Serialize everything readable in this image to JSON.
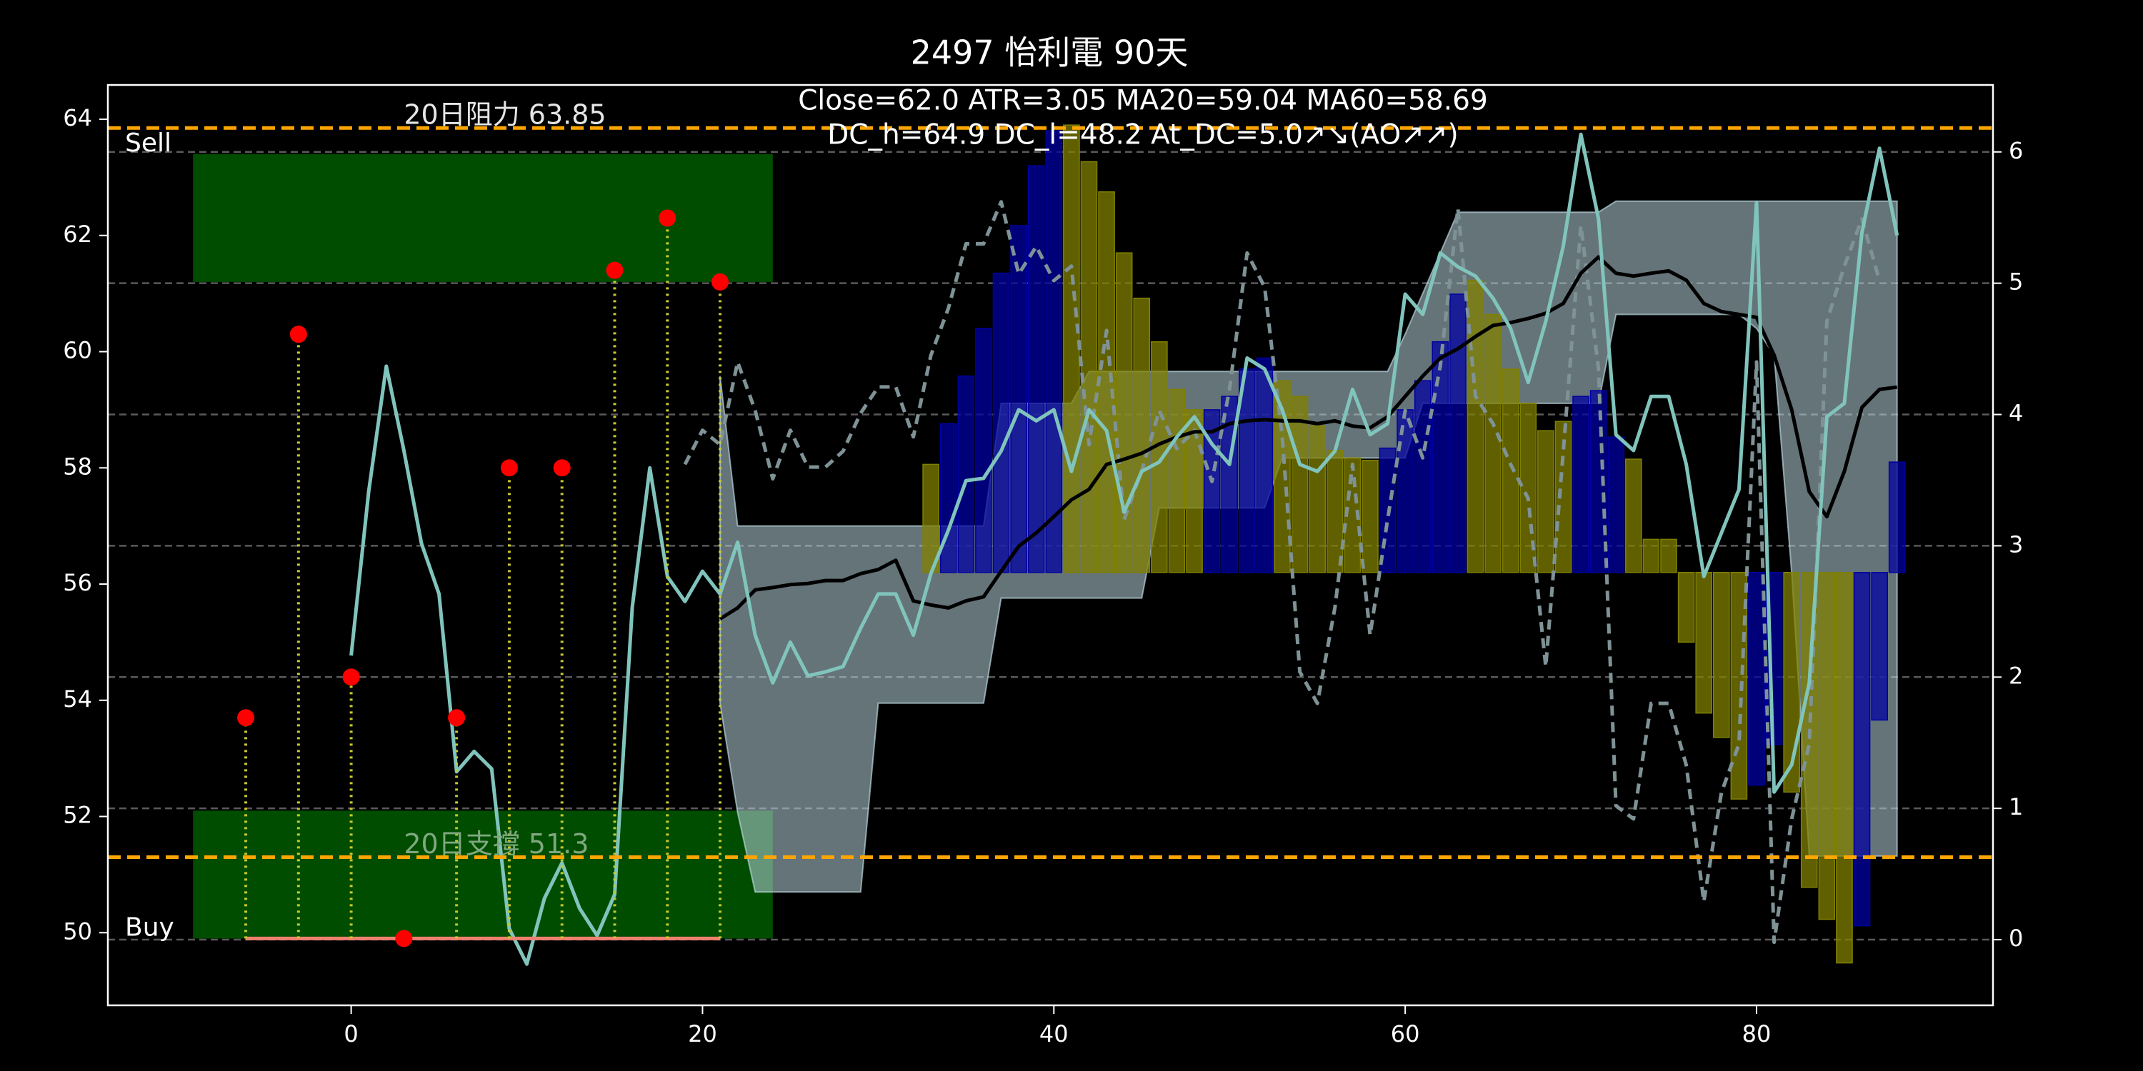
{
  "chart_data": {
    "type": "combo",
    "title": "2497 怡利電 90天",
    "annotations": [
      "Close=62.0 ATR=3.05 MA20=59.04 MA60=58.69",
      "DC_h=64.9 DC_l=48.2 At_DC=5.0↗↘(AO↗↗)"
    ],
    "xlim": [
      -13.85,
      93.46
    ],
    "xticks": [
      0,
      20,
      40,
      60,
      80
    ],
    "ylim": [
      48.75,
      64.59
    ],
    "yticks": [
      50,
      52,
      54,
      56,
      58,
      60,
      62,
      64
    ],
    "y2lim": [
      -0.5,
      6.51
    ],
    "y2ticks": [
      0,
      1,
      2,
      3,
      4,
      5,
      6
    ],
    "grid": "y2",
    "series": [
      {
        "type": "zone",
        "name": "Sell",
        "xrange": [
          -9,
          24
        ],
        "yrange": [
          61.2,
          63.4
        ],
        "color": "#004d00",
        "label_pos": "above"
      },
      {
        "type": "zone",
        "name": "Buy",
        "xrange": [
          -9,
          24
        ],
        "yrange": [
          49.9,
          52.1
        ],
        "color": "#004d00",
        "label_pos": "inside"
      },
      {
        "type": "band",
        "color": "#b8d4dc",
        "x": [
          21,
          22,
          23,
          24,
          25,
          26,
          27,
          28,
          29,
          30,
          31,
          32,
          33,
          34,
          35,
          36,
          37,
          38,
          39,
          40,
          41,
          42,
          43,
          44,
          45,
          46,
          47,
          48,
          49,
          50,
          51,
          52,
          53,
          54,
          55,
          56,
          57,
          58,
          59,
          60,
          61,
          62,
          63,
          64,
          65,
          66,
          67,
          68,
          69,
          70,
          71,
          72,
          73,
          74,
          75,
          76,
          77,
          78,
          79,
          80,
          81,
          82,
          83,
          84,
          85,
          86,
          87,
          88
        ],
        "upper": [
          59.58,
          57.0,
          57.0,
          57.0,
          57.0,
          57.0,
          57.0,
          57.0,
          57.0,
          57.0,
          57.0,
          57.0,
          57.0,
          57.0,
          57.0,
          57.0,
          59.11,
          59.11,
          59.11,
          59.11,
          59.11,
          59.66,
          59.66,
          59.66,
          59.66,
          59.66,
          59.66,
          59.66,
          59.66,
          59.66,
          59.66,
          59.66,
          59.66,
          59.66,
          59.66,
          59.66,
          59.66,
          59.66,
          59.66,
          60.3,
          61.0,
          61.7,
          62.4,
          62.4,
          62.4,
          62.4,
          62.4,
          62.4,
          62.4,
          62.4,
          62.4,
          62.59,
          62.59,
          62.59,
          62.59,
          62.59,
          62.59,
          62.59,
          62.59,
          62.59,
          62.59,
          62.59,
          62.59,
          62.59,
          62.59,
          62.59,
          62.59,
          62.59
        ],
        "lower": [
          53.95,
          52.07,
          50.7,
          50.7,
          50.7,
          50.7,
          50.7,
          50.7,
          50.7,
          53.95,
          53.95,
          53.95,
          53.95,
          53.95,
          53.95,
          53.95,
          55.76,
          55.76,
          55.76,
          55.76,
          55.76,
          55.76,
          55.76,
          55.76,
          55.76,
          57.31,
          57.31,
          57.31,
          57.31,
          57.31,
          57.31,
          57.31,
          58.17,
          58.17,
          58.17,
          58.17,
          58.17,
          58.17,
          58.17,
          58.17,
          59.11,
          59.11,
          59.11,
          59.11,
          59.11,
          59.11,
          59.11,
          59.11,
          59.11,
          59.11,
          59.11,
          60.64,
          60.64,
          60.64,
          60.64,
          60.64,
          60.64,
          60.64,
          60.64,
          60.4,
          59.94,
          56.2,
          51.32,
          51.32,
          51.32,
          51.32,
          51.32,
          51.32
        ]
      },
      {
        "type": "bar",
        "base": 56.2,
        "x": [
          33,
          34,
          35,
          36,
          37,
          38,
          39,
          40,
          41,
          42,
          43,
          44,
          45,
          46,
          47,
          48,
          49,
          50,
          51,
          52,
          53,
          54,
          55,
          56,
          57,
          58,
          59,
          60,
          61,
          62,
          63,
          64,
          65,
          66,
          67,
          68,
          69,
          70,
          71,
          72,
          73,
          74,
          75,
          76,
          77,
          78,
          79,
          80,
          81,
          82,
          83,
          84,
          85,
          86,
          87,
          88
        ],
        "values": [
          58.06,
          58.76,
          59.58,
          60.4,
          61.35,
          62.17,
          63.2,
          63.8,
          63.9,
          63.27,
          62.75,
          61.7,
          60.92,
          60.17,
          59.35,
          59.0,
          59.0,
          59.23,
          59.7,
          59.89,
          59.5,
          59.23,
          58.72,
          58.3,
          58.17,
          58.13,
          58.34,
          59.0,
          59.5,
          60.17,
          60.99,
          61.23,
          60.64,
          59.7,
          59.11,
          58.64,
          58.8,
          59.23,
          59.33,
          58.53,
          58.15,
          56.77,
          56.77,
          55.0,
          53.78,
          53.36,
          52.3,
          52.54,
          53.24,
          52.42,
          50.78,
          50.23,
          49.48,
          50.12,
          53.66,
          58.1
        ],
        "colors": [
          "#808000",
          "#0000a0",
          "#0000a0",
          "#0000a0",
          "#0000a0",
          "#0000a0",
          "#0000a0",
          "#0000a0",
          "#808000",
          "#808000",
          "#808000",
          "#808000",
          "#808000",
          "#808000",
          "#808000",
          "#808000",
          "#0000a0",
          "#0000a0",
          "#0000a0",
          "#0000a0",
          "#808000",
          "#808000",
          "#808000",
          "#808000",
          "#808000",
          "#808000",
          "#0000a0",
          "#0000a0",
          "#0000a0",
          "#0000a0",
          "#0000a0",
          "#808000",
          "#808000",
          "#808000",
          "#808000",
          "#808000",
          "#808000",
          "#0000a0",
          "#0000a0",
          "#0000a0",
          "#808000",
          "#808000",
          "#808000",
          "#808000",
          "#808000",
          "#808000",
          "#808000",
          "#0000a0",
          "#0000a0",
          "#808000",
          "#808000",
          "#808000",
          "#808000",
          "#0000a0",
          "#0000a0",
          "#0000a0"
        ]
      },
      {
        "type": "line",
        "axis": "y2",
        "dash": true,
        "color": "#7f9296",
        "x": [
          19,
          20,
          21,
          22,
          23,
          24,
          25,
          26,
          27,
          28,
          29,
          30,
          31,
          32,
          33,
          34,
          35,
          36,
          37,
          38,
          39,
          40,
          41,
          42,
          43,
          44,
          45,
          46,
          47,
          48,
          49,
          50,
          51,
          52,
          53,
          54,
          55,
          56,
          57,
          58,
          59,
          60,
          61,
          62,
          63,
          64,
          65,
          66,
          67,
          68,
          69,
          70,
          71,
          72,
          73,
          74,
          75,
          76,
          77,
          78,
          79,
          80,
          81,
          82,
          83,
          84,
          85,
          86,
          87
        ],
        "values": [
          3.62,
          3.88,
          3.77,
          4.4,
          4.03,
          3.51,
          3.88,
          3.6,
          3.6,
          3.72,
          4.01,
          4.21,
          4.21,
          3.83,
          4.45,
          4.81,
          5.3,
          5.3,
          5.62,
          5.07,
          5.28,
          5.02,
          5.13,
          3.77,
          4.64,
          3.2,
          3.57,
          4.03,
          3.74,
          3.88,
          3.49,
          4.19,
          5.23,
          4.97,
          3.83,
          2.04,
          1.8,
          2.53,
          3.62,
          2.32,
          3.2,
          4.03,
          3.67,
          4.37,
          5.57,
          4.14,
          3.93,
          3.62,
          3.36,
          2.08,
          3.72,
          5.44,
          4.35,
          1.02,
          0.92,
          1.8,
          1.8,
          1.33,
          0.29,
          1.12,
          1.49,
          4.4,
          -0.02,
          0.92,
          1.49,
          4.71,
          5.13,
          5.49,
          5.02
        ]
      },
      {
        "type": "line",
        "color": "#000000",
        "x": [
          21,
          22,
          23,
          24,
          25,
          26,
          27,
          28,
          29,
          30,
          31,
          32,
          33,
          34,
          35,
          36,
          37,
          38,
          39,
          40,
          41,
          42,
          43,
          44,
          45,
          46,
          47,
          48,
          49,
          50,
          51,
          52,
          53,
          54,
          55,
          56,
          57,
          58,
          59,
          60,
          61,
          62,
          63,
          64,
          65,
          66,
          67,
          68,
          69,
          70,
          71,
          72,
          73,
          74,
          75,
          76,
          77,
          78,
          79,
          80,
          81,
          82,
          83,
          84,
          85,
          86,
          87,
          88
        ],
        "values": [
          55.4,
          55.59,
          55.9,
          55.94,
          55.99,
          56.01,
          56.06,
          56.06,
          56.18,
          56.25,
          56.41,
          55.71,
          55.64,
          55.59,
          55.71,
          55.78,
          56.22,
          56.65,
          56.88,
          57.16,
          57.45,
          57.63,
          58.06,
          58.15,
          58.25,
          58.41,
          58.53,
          58.62,
          58.62,
          58.76,
          58.81,
          58.83,
          58.81,
          58.81,
          58.76,
          58.81,
          58.72,
          58.69,
          58.88,
          59.23,
          59.58,
          59.89,
          60.05,
          60.26,
          60.45,
          60.5,
          60.57,
          60.66,
          60.83,
          61.35,
          61.63,
          61.35,
          61.3,
          61.35,
          61.39,
          61.23,
          60.83,
          60.69,
          60.64,
          60.59,
          59.94,
          59.0,
          57.59,
          57.16,
          57.94,
          59.04,
          59.35,
          59.39
        ]
      },
      {
        "type": "line",
        "color": "#80c4bc",
        "x": [
          0,
          1,
          2,
          3,
          4,
          5,
          6,
          7,
          8,
          9,
          10,
          11,
          12,
          13,
          14,
          15,
          16,
          17,
          18,
          19,
          20,
          21,
          22,
          23,
          24,
          25,
          26,
          27,
          28,
          29,
          30,
          31,
          32,
          33,
          34,
          35,
          36,
          37,
          38,
          39,
          40,
          41,
          42,
          43,
          44,
          45,
          46,
          47,
          48,
          49,
          50,
          51,
          52,
          53,
          54,
          55,
          56,
          57,
          58,
          59,
          60,
          61,
          62,
          63,
          64,
          65,
          66,
          67,
          68,
          69,
          70,
          71,
          72,
          73,
          74,
          75,
          76,
          77,
          78,
          79,
          80,
          81,
          82,
          83,
          84,
          85,
          86,
          87,
          88
        ],
        "values": [
          54.77,
          57.6,
          59.75,
          58.3,
          56.7,
          55.83,
          52.77,
          53.12,
          52.82,
          50.07,
          49.46,
          50.59,
          51.2,
          50.42,
          49.95,
          50.66,
          55.6,
          58.0,
          56.13,
          55.7,
          56.22,
          55.83,
          56.72,
          55.12,
          54.3,
          55.0,
          54.42,
          54.49,
          54.58,
          55.24,
          55.83,
          55.83,
          55.12,
          56.18,
          56.93,
          57.78,
          57.82,
          58.29,
          59.0,
          58.81,
          59.0,
          57.94,
          59.0,
          58.64,
          57.24,
          57.94,
          58.1,
          58.53,
          58.88,
          58.41,
          58.06,
          59.89,
          59.7,
          59.0,
          58.06,
          57.94,
          58.29,
          59.35,
          58.57,
          58.76,
          60.99,
          60.64,
          61.7,
          61.46,
          61.3,
          60.92,
          60.4,
          59.47,
          60.52,
          61.82,
          63.74,
          62.29,
          58.57,
          58.3,
          59.23,
          59.23,
          58.06,
          56.13,
          56.88,
          57.63,
          62.57,
          52.42,
          52.89,
          54.3,
          58.88,
          59.11,
          62.05,
          63.5,
          62.0
        ]
      },
      {
        "type": "line",
        "color": "#f08070",
        "x": [
          -6,
          21
        ],
        "values": [
          49.9,
          49.9
        ]
      },
      {
        "type": "scatter",
        "color": "#ff0000",
        "stem_color": "#c8c830",
        "stem_to": 49.9,
        "x": [
          -6,
          -3,
          0,
          3,
          6,
          9,
          12,
          15,
          18,
          21
        ],
        "values": [
          53.7,
          60.3,
          54.4,
          49.9,
          53.7,
          58.0,
          58.0,
          61.4,
          62.3,
          61.2
        ]
      },
      {
        "type": "hline",
        "value": 63.85,
        "label": "20日阻力 63.85",
        "label_x": 3,
        "color": "#ffa500",
        "label_color": "#e6e6e6"
      },
      {
        "type": "hline",
        "value": 51.3,
        "label": "20日支撐 51.3",
        "label_x": 3,
        "color": "#ffa500",
        "label_color": "#7fa87f"
      }
    ]
  }
}
